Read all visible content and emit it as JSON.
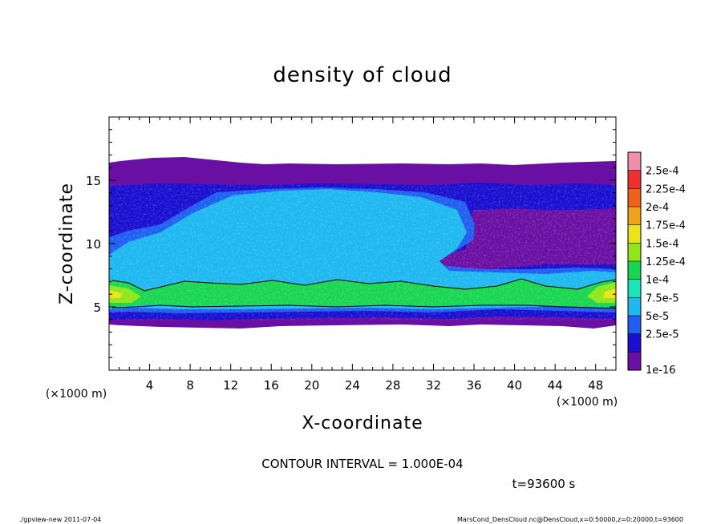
{
  "chart_data": {
    "type": "heatmap",
    "title": "density of cloud",
    "xlabel": "X-coordinate",
    "ylabel": "Z-coordinate",
    "x_unit": "(×1000 m)",
    "y_unit": "(×1000 m)",
    "xlim": [
      0,
      50
    ],
    "ylim": [
      0,
      20
    ],
    "x_ticks": [
      "4",
      "8",
      "12",
      "16",
      "20",
      "24",
      "28",
      "32",
      "36",
      "40",
      "44",
      "48"
    ],
    "y_ticks": [
      "5",
      "10",
      "15"
    ],
    "colorbar": {
      "labels": [
        "1e-16",
        "2.5e-5",
        "5e-5",
        "7.5e-5",
        "1e-4",
        "1.25e-4",
        "1.5e-4",
        "1.75e-4",
        "2e-4",
        "2.25e-4",
        "2.5e-4"
      ],
      "colors": [
        "#6a0fa3",
        "#1a0fd0",
        "#1f5ef0",
        "#1fb8f0",
        "#19e6b8",
        "#19d651",
        "#8fe61a",
        "#e8e51a",
        "#f0a21a",
        "#f0601a",
        "#f03030",
        "#f08fa8"
      ]
    },
    "grid": false,
    "legend": "colorbar-right"
  },
  "annotations": {
    "contour_interval": "CONTOUR INTERVAL = 1.000E-04",
    "time": "t=93600 s",
    "footer_left": "./gpview-new  2011-07-04",
    "footer_right": "MarsCond_DensCloud.nc@DensCloud,x=0:50000,z=0:20000,t=93600"
  }
}
